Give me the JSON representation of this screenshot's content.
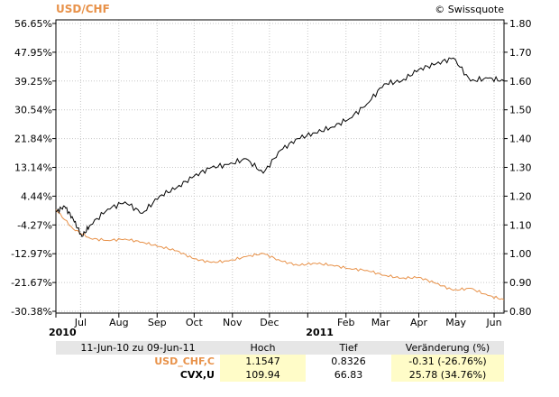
{
  "chart_data": {
    "type": "line",
    "title": "USD/CHF",
    "credit": "© Swissquote",
    "left_axis": {
      "unit": "percent",
      "ticks": [
        "56.65%",
        "47.95%",
        "39.25%",
        "30.54%",
        "21.84%",
        "13.14%",
        "4.44%",
        "-4.27%",
        "-12.97%",
        "-21.67%",
        "-30.38%"
      ]
    },
    "right_axis": {
      "ticks": [
        "1.80",
        "1.70",
        "1.60",
        "1.50",
        "1.40",
        "1.30",
        "1.20",
        "1.10",
        "1.00",
        "0.90",
        "0.80"
      ],
      "ylim": [
        0.8,
        1.8
      ]
    },
    "x_axis": {
      "ticks": [
        "2010",
        "Jul",
        "Aug",
        "Sep",
        "Oct",
        "Nov",
        "Dec",
        "2011",
        "Feb",
        "Mar",
        "Apr",
        "May",
        "Jun"
      ],
      "year_ticks": [
        "2010",
        "2011"
      ],
      "range": [
        "2010-06-11",
        "2011-06-09"
      ]
    },
    "grid": true,
    "series": [
      {
        "name": "USD_CHF,C",
        "color": "#e8924a",
        "x": [
          "2010-06-11",
          "2010-06-25",
          "2010-07-09",
          "2010-07-23",
          "2010-08-06",
          "2010-08-20",
          "2010-09-03",
          "2010-09-17",
          "2010-10-01",
          "2010-10-15",
          "2010-10-29",
          "2010-11-12",
          "2010-11-26",
          "2010-12-10",
          "2010-12-24",
          "2011-01-07",
          "2011-01-21",
          "2011-02-04",
          "2011-02-18",
          "2011-03-04",
          "2011-03-18",
          "2011-04-01",
          "2011-04-15",
          "2011-04-29",
          "2011-05-13",
          "2011-05-27",
          "2011-06-09"
        ],
        "values": [
          1.153,
          1.086,
          1.053,
          1.046,
          1.051,
          1.04,
          1.025,
          1.01,
          0.982,
          0.97,
          0.975,
          0.99,
          1.001,
          0.975,
          0.96,
          0.967,
          0.96,
          0.948,
          0.942,
          0.925,
          0.915,
          0.918,
          0.897,
          0.873,
          0.88,
          0.855,
          0.84
        ]
      },
      {
        "name": "CVX,U",
        "color": "#000000",
        "x": [
          "2010-06-11",
          "2010-06-18",
          "2010-06-25",
          "2010-07-02",
          "2010-07-09",
          "2010-07-23",
          "2010-08-06",
          "2010-08-20",
          "2010-09-03",
          "2010-09-17",
          "2010-10-01",
          "2010-10-15",
          "2010-10-29",
          "2010-11-12",
          "2010-11-26",
          "2010-12-10",
          "2010-12-24",
          "2011-01-07",
          "2011-01-21",
          "2011-02-04",
          "2011-02-18",
          "2011-03-04",
          "2011-03-18",
          "2011-04-01",
          "2011-04-15",
          "2011-04-29",
          "2011-05-13",
          "2011-05-27",
          "2011-06-09"
        ],
        "values": [
          1.145,
          1.165,
          1.12,
          1.06,
          1.1,
          1.155,
          1.18,
          1.14,
          1.2,
          1.23,
          1.27,
          1.3,
          1.31,
          1.33,
          1.28,
          1.36,
          1.4,
          1.42,
          1.44,
          1.47,
          1.52,
          1.59,
          1.6,
          1.64,
          1.66,
          1.68,
          1.6,
          1.61,
          1.6
        ]
      }
    ]
  },
  "summary": {
    "headers": [
      "11-Jun-10 zu 09-Jun-11",
      "Hoch",
      "Tief",
      "Veränderung (%)"
    ],
    "rows": [
      {
        "name": "USD_CHF,C",
        "high": "1.1547",
        "low": "0.8326",
        "change": "-0.31 (-26.76%)"
      },
      {
        "name": "CVX,U",
        "high": "109.94",
        "low": "66.83",
        "change": "25.78 (34.76%)"
      }
    ]
  }
}
